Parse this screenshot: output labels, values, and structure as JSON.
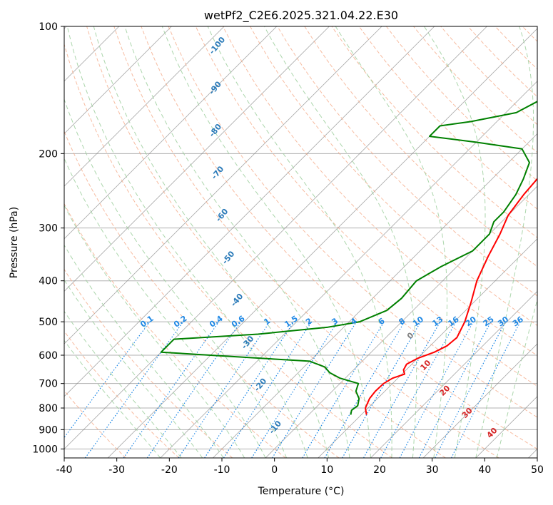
{
  "chart_data": {
    "type": "line",
    "title": "wetPf2_C2E6.2025.321.04.22.E30",
    "xlabel": "Temperature (°C)",
    "ylabel": "Pressure (hPa)",
    "xlim": [
      -40,
      50
    ],
    "ylim": [
      1050,
      100
    ],
    "y_scale": "log",
    "grid": true,
    "x_ticks": [
      -40,
      -30,
      -20,
      -10,
      0,
      10,
      20,
      30,
      40,
      50
    ],
    "y_ticks": [
      100,
      200,
      300,
      400,
      500,
      600,
      700,
      800,
      900,
      1000
    ],
    "series": [
      {
        "role": "temperature",
        "color": "#ff0000",
        "points": [
          {
            "p": 830,
            "t": 11
          },
          {
            "p": 800,
            "t": 9.5
          },
          {
            "p": 760,
            "t": 8.5
          },
          {
            "p": 730,
            "t": 8.2
          },
          {
            "p": 700,
            "t": 8.3
          },
          {
            "p": 680,
            "t": 9
          },
          {
            "p": 665,
            "t": 10.5
          },
          {
            "p": 650,
            "t": 9.5
          },
          {
            "p": 630,
            "t": 9
          },
          {
            "p": 610,
            "t": 10
          },
          {
            "p": 590,
            "t": 12
          },
          {
            "p": 570,
            "t": 13.2
          },
          {
            "p": 545,
            "t": 13.5
          },
          {
            "p": 500,
            "t": 12
          },
          {
            "p": 450,
            "t": 9.5
          },
          {
            "p": 400,
            "t": 6.5
          },
          {
            "p": 350,
            "t": 4
          },
          {
            "p": 310,
            "t": 2
          },
          {
            "p": 280,
            "t": 0
          },
          {
            "p": 250,
            "t": -1
          },
          {
            "p": 225,
            "t": -1.5
          },
          {
            "p": 200,
            "t": 1
          },
          {
            "p": 180,
            "t": 5
          },
          {
            "p": 160,
            "t": 7.5
          },
          {
            "p": 140,
            "t": 9
          },
          {
            "p": 125,
            "t": 10.5
          },
          {
            "p": 113,
            "t": 12
          },
          {
            "p": 100,
            "t": 15
          }
        ]
      },
      {
        "role": "dewpoint",
        "color": "#008000",
        "points": [
          {
            "p": 830,
            "t": 8
          },
          {
            "p": 810,
            "t": 7.3
          },
          {
            "p": 790,
            "t": 7.6
          },
          {
            "p": 760,
            "t": 6.5
          },
          {
            "p": 730,
            "t": 4.5
          },
          {
            "p": 700,
            "t": 3.5
          },
          {
            "p": 680,
            "t": -1
          },
          {
            "p": 660,
            "t": -4
          },
          {
            "p": 640,
            "t": -6
          },
          {
            "p": 620,
            "t": -10
          },
          {
            "p": 600,
            "t": -30
          },
          {
            "p": 590,
            "t": -40
          },
          {
            "p": 550,
            "t": -40
          },
          {
            "p": 535,
            "t": -25
          },
          {
            "p": 515,
            "t": -13
          },
          {
            "p": 500,
            "t": -8
          },
          {
            "p": 470,
            "t": -5
          },
          {
            "p": 440,
            "t": -4.5
          },
          {
            "p": 400,
            "t": -5
          },
          {
            "p": 370,
            "t": -3
          },
          {
            "p": 340,
            "t": 0
          },
          {
            "p": 310,
            "t": 0
          },
          {
            "p": 290,
            "t": -1.5
          },
          {
            "p": 275,
            "t": -1.5
          },
          {
            "p": 250,
            "t": -2.5
          },
          {
            "p": 230,
            "t": -4
          },
          {
            "p": 210,
            "t": -6
          },
          {
            "p": 195,
            "t": -10
          },
          {
            "p": 188,
            "t": -20
          },
          {
            "p": 182,
            "t": -30
          },
          {
            "p": 172,
            "t": -30
          },
          {
            "p": 168,
            "t": -25
          },
          {
            "p": 160,
            "t": -18
          },
          {
            "p": 150,
            "t": -16
          },
          {
            "p": 140,
            "t": -17
          },
          {
            "p": 130,
            "t": -10
          },
          {
            "p": 120,
            "t": -3
          },
          {
            "p": 110,
            "t": -1.5
          },
          {
            "p": 100,
            "t": -1.5
          }
        ]
      }
    ],
    "dry_adiabat_labels": [
      "-100",
      "-90",
      "-80",
      "-70",
      "-60",
      "-50",
      "-40",
      "-30",
      "-20",
      "-10"
    ],
    "mixing_ratio_labels": [
      "0.1",
      "0.2",
      "0.4",
      "0.6",
      "1",
      "1.5",
      "2",
      "3",
      "4",
      "6",
      "8",
      "10",
      "13",
      "16",
      "20",
      "25",
      "30",
      "36"
    ],
    "moist_adiabat_labels": [
      "0",
      "10",
      "20",
      "30",
      "40"
    ],
    "colors": {
      "temperature": "#ff0000",
      "dewpoint": "#008000",
      "dry_adiabat": "#f4a582",
      "moist_adiabat": "#9ecf9e",
      "mixing_ratio": "#1e88e5",
      "isotherm": "#808080",
      "dry_adiabat_label": "#2b7bb9",
      "moist_adiabat_label": "#d62728"
    }
  }
}
